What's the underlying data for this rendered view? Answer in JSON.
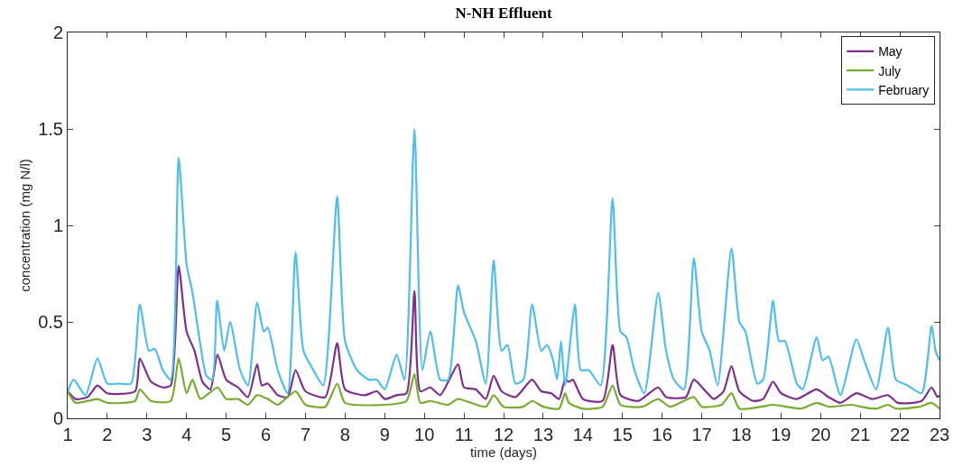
{
  "chart_data": {
    "type": "line",
    "title": "N-NH Effluent",
    "xlabel": "time (days)",
    "ylabel": "concentration (mg N/l)",
    "xlim": [
      1,
      23
    ],
    "xticks": [
      1,
      2,
      3,
      4,
      5,
      6,
      7,
      8,
      9,
      10,
      11,
      12,
      13,
      14,
      15,
      16,
      17,
      18,
      19,
      20,
      21,
      22,
      23
    ],
    "ylim": [
      0,
      2
    ],
    "yticks": [
      0,
      0.5,
      1,
      1.5,
      2
    ],
    "grid": false,
    "legend": "top right",
    "marker": "none",
    "line_style": "solid",
    "series": [
      {
        "name": "May",
        "color": "#7e2f8e",
        "x": [
          1,
          1.2,
          1.5,
          1.75,
          2,
          2.7,
          2.82,
          3.1,
          3.4,
          3.6,
          3.8,
          4,
          4.2,
          4.4,
          4.6,
          4.78,
          5,
          5.3,
          5.55,
          5.78,
          5.9,
          6.05,
          6.3,
          6.55,
          6.75,
          7,
          7.5,
          7.8,
          8,
          8.5,
          8.8,
          9,
          9.3,
          9.55,
          9.75,
          9.9,
          10.15,
          10.4,
          10.85,
          11,
          11.3,
          11.55,
          11.75,
          11.95,
          12.3,
          12.72,
          12.95,
          13.2,
          13.4,
          13.55,
          13.65,
          13.75,
          14,
          14.5,
          14.75,
          14.95,
          15.4,
          15.9,
          16.1,
          16.6,
          16.8,
          17.1,
          17.3,
          17.55,
          17.75,
          17.95,
          18.3,
          18.55,
          18.8,
          19,
          19.4,
          19.9,
          20.2,
          20.5,
          20.9,
          21.3,
          21.7,
          21.95,
          22.55,
          22.8,
          22.95,
          23
        ],
        "values": [
          0.14,
          0.1,
          0.11,
          0.17,
          0.13,
          0.14,
          0.31,
          0.19,
          0.16,
          0.17,
          0.79,
          0.45,
          0.35,
          0.19,
          0.15,
          0.33,
          0.2,
          0.16,
          0.11,
          0.28,
          0.17,
          0.18,
          0.12,
          0.11,
          0.25,
          0.14,
          0.11,
          0.39,
          0.15,
          0.12,
          0.14,
          0.1,
          0.12,
          0.13,
          0.66,
          0.14,
          0.16,
          0.12,
          0.28,
          0.16,
          0.15,
          0.1,
          0.22,
          0.14,
          0.11,
          0.2,
          0.14,
          0.13,
          0.1,
          0.2,
          0.19,
          0.2,
          0.1,
          0.09,
          0.38,
          0.12,
          0.09,
          0.16,
          0.11,
          0.11,
          0.2,
          0.14,
          0.1,
          0.14,
          0.27,
          0.14,
          0.09,
          0.1,
          0.19,
          0.13,
          0.1,
          0.15,
          0.11,
          0.08,
          0.13,
          0.1,
          0.12,
          0.08,
          0.09,
          0.16,
          0.11,
          0.12
        ]
      },
      {
        "name": "July",
        "color": "#77ac30",
        "x": [
          1,
          1.2,
          1.75,
          2,
          2.7,
          2.82,
          3.1,
          3.6,
          3.8,
          4,
          4.15,
          4.35,
          4.78,
          5,
          5.3,
          5.55,
          5.78,
          6.05,
          6.3,
          6.75,
          7,
          7.5,
          7.8,
          8,
          9,
          9.55,
          9.75,
          9.9,
          10.15,
          10.6,
          10.85,
          11.55,
          11.75,
          12,
          12.5,
          12.72,
          13,
          13.4,
          13.55,
          13.65,
          14,
          14.5,
          14.75,
          14.95,
          15.5,
          15.9,
          16.2,
          16.8,
          17,
          17.5,
          17.75,
          17.95,
          18.5,
          18.8,
          19.5,
          19.9,
          20.2,
          20.8,
          21,
          21.4,
          21.7,
          21.9,
          22.5,
          22.8,
          23
        ],
        "values": [
          0.14,
          0.08,
          0.1,
          0.08,
          0.09,
          0.15,
          0.09,
          0.09,
          0.31,
          0.13,
          0.2,
          0.1,
          0.16,
          0.1,
          0.1,
          0.07,
          0.12,
          0.1,
          0.07,
          0.14,
          0.07,
          0.06,
          0.18,
          0.08,
          0.07,
          0.09,
          0.23,
          0.08,
          0.09,
          0.07,
          0.1,
          0.06,
          0.12,
          0.06,
          0.06,
          0.09,
          0.06,
          0.05,
          0.13,
          0.08,
          0.05,
          0.06,
          0.17,
          0.07,
          0.06,
          0.1,
          0.06,
          0.11,
          0.06,
          0.07,
          0.13,
          0.05,
          0.06,
          0.07,
          0.05,
          0.08,
          0.06,
          0.07,
          0.06,
          0.05,
          0.07,
          0.05,
          0.06,
          0.08,
          0.05
        ]
      },
      {
        "name": "February",
        "color": "#4dbeee",
        "x": [
          1,
          1.15,
          1.45,
          1.75,
          2,
          2.3,
          2.6,
          2.82,
          3.05,
          3.2,
          3.4,
          3.6,
          3.8,
          4,
          4.15,
          4.35,
          4.5,
          4.65,
          4.77,
          4.95,
          5.1,
          5.35,
          5.55,
          5.78,
          5.95,
          6.05,
          6.3,
          6.55,
          6.75,
          6.95,
          7.2,
          7.45,
          7.8,
          8,
          8.3,
          8.6,
          8.8,
          9,
          9.3,
          9.5,
          9.75,
          9.95,
          10.15,
          10.4,
          10.6,
          10.85,
          11,
          11.3,
          11.55,
          11.75,
          11.95,
          12.1,
          12.3,
          12.5,
          12.72,
          12.95,
          13.1,
          13.25,
          13.35,
          13.45,
          13.55,
          13.8,
          13.95,
          14.15,
          14.45,
          14.75,
          14.95,
          15.1,
          15.3,
          15.55,
          15.9,
          16.1,
          16.3,
          16.55,
          16.8,
          17,
          17.2,
          17.4,
          17.75,
          17.95,
          18.1,
          18.4,
          18.55,
          18.8,
          18.95,
          19.1,
          19.4,
          19.55,
          19.9,
          20.05,
          20.2,
          20.5,
          20.9,
          21.1,
          21.4,
          21.7,
          21.9,
          22.2,
          22.55,
          22.8,
          22.9,
          23
        ],
        "values": [
          0.14,
          0.2,
          0.12,
          0.31,
          0.18,
          0.18,
          0.18,
          0.59,
          0.35,
          0.36,
          0.25,
          0.2,
          1.35,
          0.8,
          0.65,
          0.38,
          0.22,
          0.2,
          0.61,
          0.35,
          0.5,
          0.25,
          0.17,
          0.6,
          0.45,
          0.47,
          0.25,
          0.13,
          0.86,
          0.35,
          0.25,
          0.17,
          1.15,
          0.4,
          0.25,
          0.2,
          0.2,
          0.15,
          0.33,
          0.2,
          1.5,
          0.25,
          0.45,
          0.2,
          0.2,
          0.69,
          0.55,
          0.4,
          0.18,
          0.82,
          0.35,
          0.38,
          0.18,
          0.2,
          0.59,
          0.35,
          0.38,
          0.3,
          0.2,
          0.4,
          0.17,
          0.59,
          0.25,
          0.25,
          0.17,
          1.14,
          0.45,
          0.42,
          0.25,
          0.13,
          0.65,
          0.35,
          0.2,
          0.15,
          0.83,
          0.45,
          0.35,
          0.17,
          0.88,
          0.5,
          0.45,
          0.18,
          0.2,
          0.61,
          0.4,
          0.4,
          0.18,
          0.15,
          0.42,
          0.3,
          0.32,
          0.12,
          0.41,
          0.3,
          0.15,
          0.47,
          0.2,
          0.17,
          0.13,
          0.48,
          0.35,
          0.3
        ]
      }
    ]
  }
}
